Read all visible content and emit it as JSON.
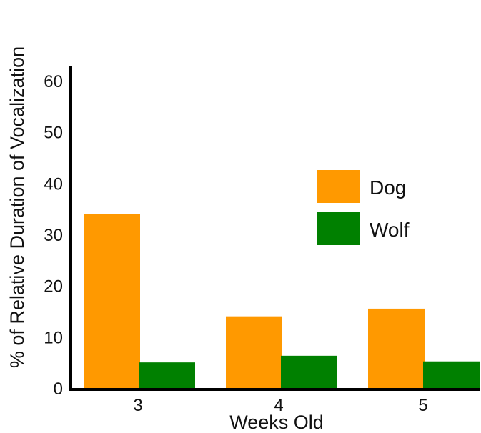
{
  "chart_data": {
    "type": "bar",
    "title": "",
    "xlabel": "Weeks Old",
    "ylabel": "% of Relative Duration of Vocalization",
    "categories": [
      "3",
      "4",
      "5"
    ],
    "series": [
      {
        "name": "Dog",
        "color": "#FF9900",
        "values": [
          34,
          14,
          15.5
        ]
      },
      {
        "name": "Wolf",
        "color": "#008000",
        "values": [
          5,
          6.3,
          5.2
        ]
      }
    ],
    "ylim": [
      0,
      60
    ],
    "yticks": [
      0,
      10,
      20,
      30,
      40,
      50,
      60
    ],
    "grid": false,
    "legend_position": "center-right"
  }
}
